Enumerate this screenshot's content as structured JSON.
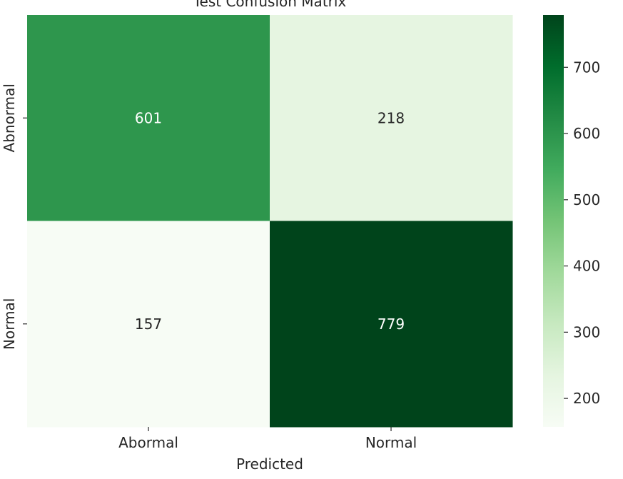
{
  "chart_data": {
    "type": "heatmap",
    "title": "Test Confusion Matrix",
    "xlabel": "Predicted",
    "ylabel": "",
    "x_categories": [
      "Abormal",
      "Normal"
    ],
    "y_categories": [
      "Abnormal",
      "Normal"
    ],
    "values": [
      [
        601,
        218
      ],
      [
        157,
        779
      ]
    ],
    "colormap": "Greens",
    "color_range": [
      157,
      779
    ],
    "colorbar_ticks": [
      200,
      300,
      400,
      500,
      600,
      700
    ],
    "cell_colors": [
      [
        "#2e964d",
        "#e6f5e1"
      ],
      [
        "#f7fcf5",
        "#00441b"
      ]
    ],
    "annotation_colors": [
      [
        "#ffffff",
        "#262626"
      ],
      [
        "#262626",
        "#ffffff"
      ]
    ],
    "colorbar_gradient": [
      "#f7fcf5",
      "#e5f5e0",
      "#c7e9c0",
      "#a1d99b",
      "#74c476",
      "#41ab5d",
      "#238b45",
      "#006d2c",
      "#00441b"
    ]
  }
}
